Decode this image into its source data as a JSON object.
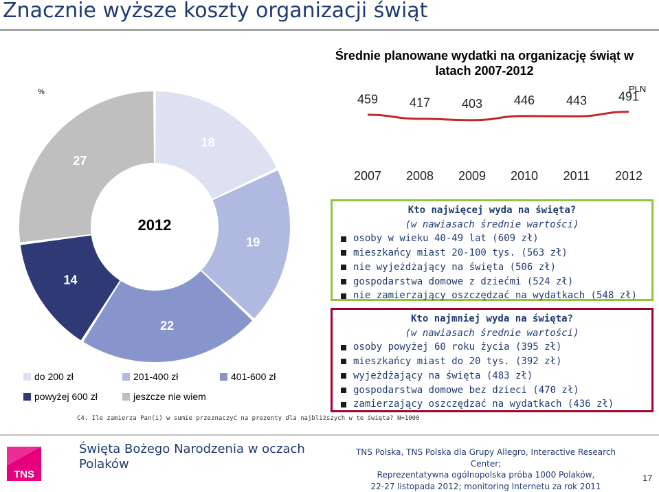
{
  "page": {
    "title": "Znacznie wyższe koszty organizacji świąt",
    "percent_label": "%",
    "question": "C4. Ile zamierza Pan(i) w sumie przeznaczyć na prezenty dla najbliższych w te święta? N=1000",
    "page_number": "17"
  },
  "chart_data": [
    {
      "type": "pie",
      "donut": true,
      "center_label": "2012",
      "slices": [
        {
          "label": "do 200 zł",
          "value": 18,
          "value_label": "18",
          "color": "#dde1f2"
        },
        {
          "label": "201-400 zł",
          "value": 19,
          "value_label": "19",
          "color": "#b0b9df"
        },
        {
          "label": "401-600 zł",
          "value": 22,
          "value_label": "22",
          "color": "#8894cc"
        },
        {
          "label": "powyżej 600 zł",
          "value": 14,
          "value_label": "14",
          "color": "#2f3976"
        },
        {
          "label": "jeszcze nie wiem",
          "value": 27,
          "value_label": "27",
          "color": "#bfbfbf"
        }
      ],
      "legend": [
        {
          "label": "do 200 zł",
          "color": "#dde1f2"
        },
        {
          "label": "201-400 zł",
          "color": "#b0b9df"
        },
        {
          "label": "401-600 zł",
          "color": "#8894cc"
        },
        {
          "label": "powyżej 600 zł",
          "color": "#2f3976"
        },
        {
          "label": "jeszcze nie wiem",
          "color": "#bfbfbf"
        }
      ],
      "legend_position": "bottom"
    },
    {
      "type": "line",
      "title": "Średnie planowane wydatki na organizację świąt w latach 2007-2012",
      "unit": "PLN",
      "x": [
        "2007",
        "2008",
        "2009",
        "2010",
        "2011",
        "2012"
      ],
      "values": [
        459,
        417,
        403,
        446,
        443,
        491
      ],
      "color": "#c0282d",
      "ylim": [
        380,
        510
      ]
    }
  ],
  "box_most": {
    "heading": "Kto najwięcej wyda na święta?",
    "sub": "(w nawiasach średnie wartości)",
    "items": [
      "osoby w wieku 40-49 lat (609 zł)",
      "mieszkańcy miast 20-100 tys. (563 zł)",
      "nie wyjeżdżający na święta (506 zł)",
      "gospodarstwa domowe z dziećmi (524 zł)",
      "nie zamierzający oszczędzać na wydatkach (548 zł)"
    ],
    "border_color": "#8dc63f"
  },
  "box_least": {
    "heading": "Kto najmniej wyda na święta?",
    "sub": "(w nawiasach średnie wartości)",
    "items": [
      "osoby powyżej 60 roku życia (395 zł)",
      "mieszkańcy miast do 20 tys. (392 zł)",
      "wyjeżdżający na święta (483 zł)",
      "gospodarstwa domowe bez dzieci (470 zł)",
      "zamierzający oszczędzać na wydatkach (436 zł)"
    ],
    "border_color": "#a0002a"
  },
  "footer": {
    "logo_text": "TNS",
    "logo_color": "#e6007e",
    "left_line1": "Święta Bożego Narodzenia w oczach",
    "left_line2": "Polaków",
    "right_line1": "TNS Polska, TNS Polska dla Grupy Allegro, Interactive Research Center;",
    "right_line2": "Reprezentatywna ogólnopolska próba 1000 Polaków,",
    "right_line3": "22-27 listopada 2012; monitoring Internetu za rok 2011"
  }
}
